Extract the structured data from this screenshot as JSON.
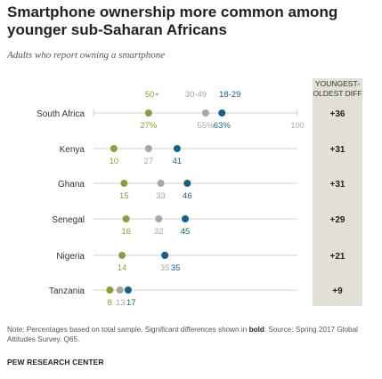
{
  "title": "Smartphone ownership more common among younger sub-Saharan Africans",
  "subtitle": "Adults who report owning a smartphone",
  "diff_header": "YOUNGEST-OLDEST DIFF",
  "axis_max_label": "100",
  "note_prefix": "Note: Percentages based on total sample. Significant differences shown in ",
  "note_bold": "bold",
  "note_suffix": ". Source: Spring 2017 Global Attitudes Survey. Q65.",
  "source_org": "PEW RESEARCH CENTER",
  "colors": {
    "age_50plus": "#949a3d",
    "age_30_49": "#a7a7a7",
    "age_18_29": "#1b5f86",
    "diff_bg": "#e2e0d6",
    "axis": "#d0d0d0"
  },
  "chart_data": {
    "type": "dot",
    "title": "Smartphone ownership more common among younger sub-Saharan Africans",
    "subtitle": "Adults who report owning a smartphone",
    "xlim": [
      0,
      100
    ],
    "series_names": [
      "50+",
      "30-49",
      "18-29"
    ],
    "countries": [
      {
        "name": "South Africa",
        "values": [
          27,
          55,
          63
        ],
        "labels": [
          "27%",
          "55%",
          "63%"
        ],
        "diff": "+36"
      },
      {
        "name": "Kenya",
        "values": [
          10,
          27,
          41
        ],
        "labels": [
          "10",
          "27",
          "41"
        ],
        "diff": "+31"
      },
      {
        "name": "Ghana",
        "values": [
          15,
          33,
          46
        ],
        "labels": [
          "15",
          "33",
          "46"
        ],
        "diff": "+31"
      },
      {
        "name": "Senegal",
        "values": [
          16,
          32,
          45
        ],
        "labels": [
          "16",
          "32",
          "45"
        ],
        "diff": "+29"
      },
      {
        "name": "Nigeria",
        "values": [
          14,
          35,
          35
        ],
        "labels": [
          "14",
          "35",
          "35"
        ],
        "diff": "+21"
      },
      {
        "name": "Tanzania",
        "values": [
          8,
          13,
          17
        ],
        "labels": [
          "8",
          "13",
          "17"
        ],
        "diff": "+9"
      }
    ]
  }
}
